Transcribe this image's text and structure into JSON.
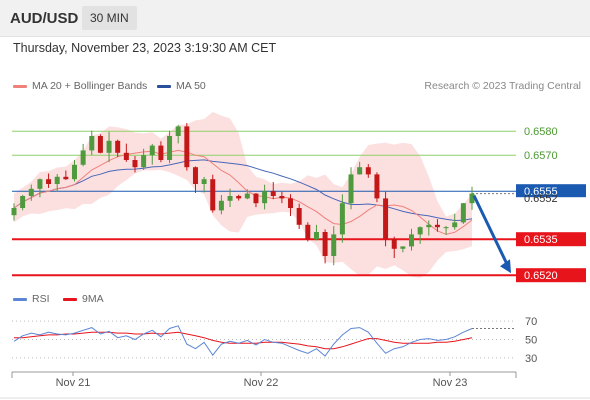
{
  "header": {
    "symbol": "AUD/USD",
    "timeframe": "30 MIN",
    "date": "Thursday, November 23, 2023 3:19:30 AM CET",
    "copyright": "Research © 2023 Trading Central"
  },
  "legend": {
    "ma20_label": "MA 20 + Bollinger Bands",
    "ma50_label": "MA 50",
    "rsi_label": "RSI",
    "rsi_ma_label": "9MA"
  },
  "colors": {
    "up": "#4f9a3f",
    "down": "#c41818",
    "bollinger_fill": "#fbd3d3",
    "ma20": "#f0807a",
    "ma50": "#4a66b8",
    "support": "#e8141c",
    "resistance": "#8fd06a",
    "current": "#1a5ab0",
    "rsi": "#5b86d6",
    "rsi_ma": "#e8141c"
  },
  "chart_data": [
    {
      "type": "candlestick",
      "title": "AUD/USD",
      "ylim": [
        0.6518,
        0.6593
      ],
      "grid": false,
      "legend_position": "top-left",
      "x_labels": [
        "Nov 21",
        "Nov 22",
        "Nov 23"
      ],
      "series": [
        {
          "name": "MA 20 + Bollinger Bands"
        },
        {
          "name": "MA 50"
        }
      ],
      "close_path": [
        0.6548,
        0.6553,
        0.6556,
        0.656,
        0.6558,
        0.6561,
        0.656,
        0.6566,
        0.6572,
        0.6578,
        0.6571,
        0.6576,
        0.6571,
        0.6568,
        0.6565,
        0.657,
        0.6574,
        0.6568,
        0.6578,
        0.6582,
        0.6565,
        0.6558,
        0.656,
        0.6547,
        0.6551,
        0.6553,
        0.6552,
        0.6554,
        0.655,
        0.6555,
        0.6553,
        0.6552,
        0.6548,
        0.6541,
        0.6535,
        0.6538,
        0.6528,
        0.6537,
        0.655,
        0.6562,
        0.6565,
        0.6562,
        0.6552,
        0.6535,
        0.6531,
        0.6532,
        0.6537,
        0.654,
        0.6541,
        0.654,
        0.654,
        0.6542,
        0.655,
        0.6554
      ],
      "levels": [
        {
          "name": "resistance 2",
          "value": 0.658,
          "label": "0.6580",
          "kind": "resistance"
        },
        {
          "name": "resistance 1",
          "value": 0.657,
          "label": "0.6570",
          "kind": "resistance"
        },
        {
          "name": "current price",
          "value": 0.6555,
          "label": "0.6555",
          "kind": "current"
        },
        {
          "name": "support 1",
          "value": 0.6535,
          "label": "0.6535",
          "kind": "support"
        },
        {
          "name": "support 2",
          "value": 0.652,
          "label": "0.6520",
          "kind": "support"
        }
      ],
      "current_price_sublabel": "0.6552",
      "projection": {
        "from": 0.6554,
        "to": 0.652,
        "direction": "down"
      }
    },
    {
      "type": "line",
      "title": "RSI",
      "ylim": [
        20,
        80
      ],
      "y_ticks": [
        70,
        50,
        30
      ],
      "series": [
        {
          "name": "RSI",
          "values": [
            48,
            54,
            57,
            55,
            58,
            56,
            55,
            57,
            60,
            63,
            56,
            59,
            52,
            54,
            50,
            56,
            60,
            53,
            62,
            65,
            45,
            40,
            47,
            33,
            45,
            48,
            46,
            49,
            44,
            50,
            47,
            46,
            42,
            38,
            35,
            40,
            32,
            45,
            55,
            62,
            63,
            58,
            46,
            35,
            40,
            42,
            47,
            50,
            51,
            49,
            50,
            53,
            58,
            62
          ]
        },
        {
          "name": "9MA",
          "values": [
            52,
            52,
            53,
            54,
            55,
            55,
            56,
            56,
            57,
            58,
            58,
            58,
            57,
            57,
            56,
            56,
            57,
            56,
            57,
            58,
            56,
            54,
            52,
            49,
            47,
            46,
            46,
            46,
            46,
            47,
            47,
            47,
            46,
            45,
            43,
            42,
            40,
            40,
            42,
            45,
            48,
            51,
            51,
            49,
            47,
            46,
            46,
            46,
            46,
            47,
            47,
            48,
            50,
            52
          ]
        }
      ]
    }
  ]
}
